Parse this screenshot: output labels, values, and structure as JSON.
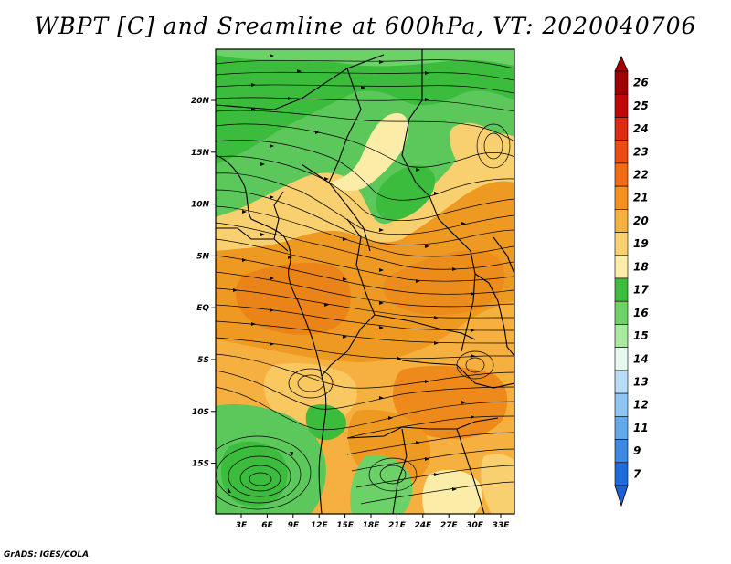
{
  "title": "WBPT [C] and Sreamline at 600hPa, VT: 2020040706",
  "credit": "GrADS: IGES/COLA",
  "map": {
    "lat_ticks": [
      "20N",
      "15N",
      "10N",
      "5N",
      "EQ",
      "5S",
      "10S",
      "15S"
    ],
    "lon_ticks": [
      "3E",
      "6E",
      "9E",
      "12E",
      "15E",
      "18E",
      "21E",
      "24E",
      "27E",
      "30E",
      "33E"
    ],
    "lat_range_deg": [
      -19.5,
      24.5
    ],
    "lon_range_deg": [
      0,
      35
    ]
  },
  "colorbar": {
    "labels": [
      "26",
      "25",
      "24",
      "23",
      "22",
      "21",
      "20",
      "19",
      "18",
      "17",
      "16",
      "15",
      "14",
      "13",
      "12",
      "11",
      "9",
      "7"
    ],
    "colors": [
      "#a00000",
      "#c00808",
      "#dd2a10",
      "#ee4a14",
      "#f06a18",
      "#f3901e",
      "#f6b040",
      "#f9d070",
      "#fbeca8",
      "#3cbc3c",
      "#6cd268",
      "#a8e8a0",
      "#e6f9ef",
      "#b6dcf6",
      "#8ec4f2",
      "#64a8ec",
      "#3c8ae4",
      "#1c6cdc"
    ],
    "min_arrow_color": "#1f5fd6",
    "max_arrow_color": "#a00000"
  },
  "legend_icon": "colorbar-arrows"
}
